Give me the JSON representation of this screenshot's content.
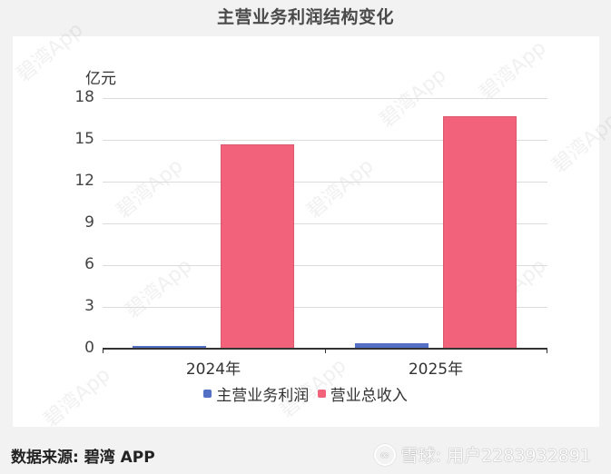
{
  "title": "主营业务利润结构变化",
  "y_axis": {
    "unit": "亿元",
    "ticks": [
      "18",
      "15",
      "12",
      "9",
      "6",
      "3",
      "0"
    ]
  },
  "x_axis": {
    "categories": [
      "2024年",
      "2025年"
    ]
  },
  "legend": [
    {
      "label": "主营业务利润",
      "color": "#5470c6"
    },
    {
      "label": "营业总收入",
      "color": "#f2637b"
    }
  ],
  "footer": {
    "source": "数据来源: 碧湾 APP",
    "credit": "雪球: 用户2283932891",
    "credit_icon": "xueqiu-logo-icon"
  },
  "watermark": "碧湾App",
  "chart_data": {
    "type": "bar",
    "title": "主营业务利润结构变化",
    "xlabel": "",
    "ylabel": "亿元",
    "categories": [
      "2024年",
      "2025年"
    ],
    "series": [
      {
        "name": "主营业务利润",
        "values": [
          0.2,
          0.4
        ],
        "color": "#5470c6"
      },
      {
        "name": "营业总收入",
        "values": [
          14.7,
          16.7
        ],
        "color": "#f2637b"
      }
    ],
    "ylim": [
      0,
      18
    ],
    "yticks": [
      0,
      3,
      6,
      9,
      12,
      15,
      18
    ],
    "grid": true,
    "legend_position": "bottom"
  }
}
